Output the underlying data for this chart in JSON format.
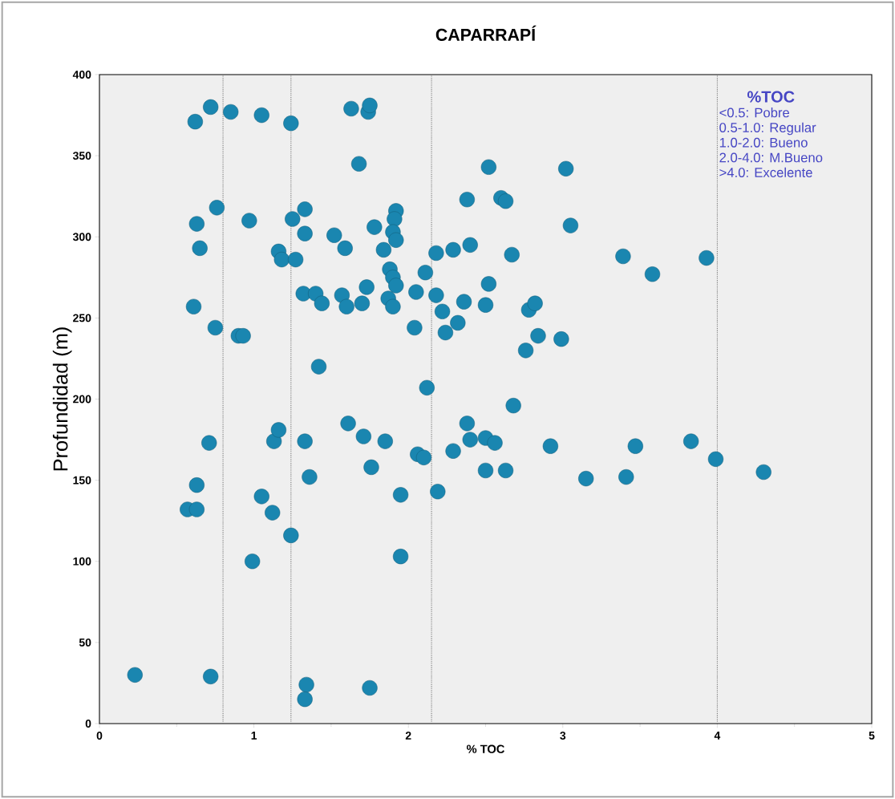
{
  "chart_data": {
    "type": "scatter",
    "title": "CAPARRAPÍ",
    "xlabel": "% TOC",
    "ylabel": "Profundidad (m)",
    "xlim": [
      0,
      5
    ],
    "ylim": [
      0,
      400
    ],
    "xticks": [
      0,
      1,
      2,
      3,
      4,
      5
    ],
    "yticks": [
      0,
      50,
      100,
      150,
      200,
      250,
      300,
      350,
      400
    ],
    "annotations": [
      "%TOC",
      "<0.5: Pobre",
      "0.5-1.0: Regular",
      "1.0-2.0: Bueno",
      "2.0-4.0: M.Bueno",
      ">4.0: Excelente"
    ],
    "ref_lines": [
      {
        "axis": "x",
        "value": 0.8,
        "color": "#707070",
        "line_style": "dotted"
      },
      {
        "axis": "x",
        "value": 1.24,
        "color": "#707070",
        "line_style": "dotted"
      },
      {
        "axis": "x",
        "value": 2.15,
        "color": "#707070",
        "line_style": "dotted"
      },
      {
        "axis": "x",
        "value": 4.0,
        "color": "#707070",
        "line_style": "dotted"
      }
    ],
    "series": [
      {
        "color": "#1a86b0",
        "x": [
          0.62,
          0.72,
          0.85,
          1.05,
          1.24,
          1.63,
          1.74,
          1.75,
          1.68,
          2.52,
          3.02,
          0.63,
          0.76,
          0.97,
          1.25,
          1.33,
          1.33,
          1.52,
          1.59,
          1.78,
          1.92,
          1.91,
          1.9,
          1.92,
          2.38,
          2.6,
          2.63,
          3.05,
          0.65,
          1.16,
          1.18,
          1.27,
          1.84,
          1.88,
          1.9,
          1.92,
          2.11,
          2.18,
          2.29,
          2.4,
          2.67,
          3.39,
          3.58,
          3.93,
          0.61,
          0.75,
          0.9,
          0.93,
          1.32,
          1.4,
          1.44,
          1.57,
          1.6,
          1.7,
          1.73,
          1.87,
          1.9,
          2.05,
          2.18,
          2.22,
          2.24,
          2.04,
          2.32,
          2.36,
          2.5,
          2.52,
          2.78,
          2.82,
          2.84,
          2.76,
          2.99,
          1.42,
          2.12,
          2.68,
          0.71,
          1.13,
          1.16,
          1.33,
          1.61,
          1.71,
          1.85,
          2.38,
          2.4,
          2.5,
          2.56,
          2.92,
          3.47,
          3.83,
          2.06,
          2.1,
          2.29,
          1.76,
          1.36,
          2.5,
          2.63,
          3.15,
          3.41,
          3.99,
          4.3,
          0.63,
          0.57,
          0.63,
          1.05,
          1.12,
          1.95,
          2.19,
          1.24,
          0.99,
          1.95,
          0.23,
          0.72,
          1.34,
          1.33,
          1.75
        ],
        "values": [
          371,
          380,
          377,
          375,
          370,
          379,
          377,
          381,
          345,
          343,
          342,
          308,
          318,
          310,
          311,
          317,
          302,
          301,
          293,
          306,
          316,
          311,
          303,
          298,
          323,
          324,
          322,
          307,
          293,
          291,
          286,
          286,
          292,
          280,
          275,
          270,
          278,
          290,
          292,
          295,
          289,
          288,
          277,
          287,
          257,
          244,
          239,
          239,
          265,
          265,
          259,
          264,
          257,
          259,
          269,
          262,
          257,
          266,
          264,
          254,
          241,
          244,
          247,
          260,
          258,
          271,
          255,
          259,
          239,
          230,
          237,
          220,
          207,
          196,
          173,
          174,
          181,
          174,
          185,
          177,
          174,
          185,
          175,
          176,
          173,
          171,
          171,
          174,
          166,
          164,
          168,
          158,
          152,
          156,
          156,
          151,
          152,
          163,
          155,
          147,
          132,
          132,
          140,
          130,
          141,
          143,
          116,
          100,
          103,
          30,
          29,
          24,
          15,
          22
        ]
      }
    ]
  }
}
